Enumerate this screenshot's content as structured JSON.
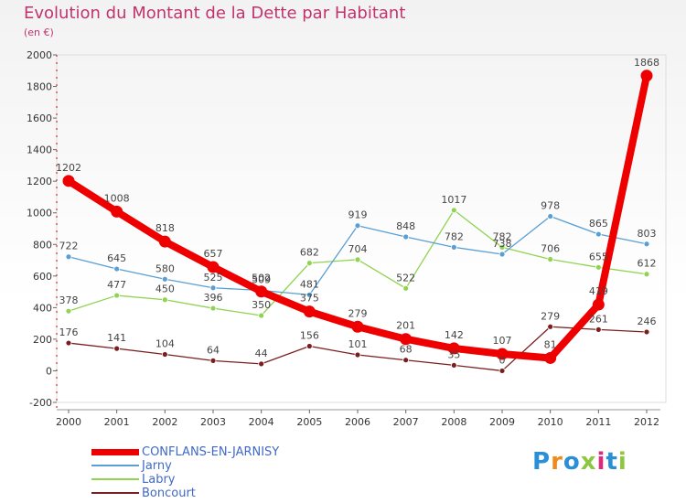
{
  "title": "Evolution du Montant de la Dette par Habitant",
  "subtitle": "(en €)",
  "logo_text": "Proxiti",
  "chart_data": {
    "type": "line",
    "title": "Evolution du Montant de la Dette par Habitant",
    "ylabel": "(en €)",
    "x": [
      "2000",
      "2001",
      "2002",
      "2003",
      "2004",
      "2005",
      "2006",
      "2007",
      "2008",
      "2009",
      "2010",
      "2011",
      "2012"
    ],
    "ylim": [
      -200,
      2000
    ],
    "yticks": [
      -200,
      0,
      200,
      400,
      600,
      800,
      1000,
      1200,
      1400,
      1600,
      1800,
      2000
    ],
    "grid": false,
    "legend": "bottom-left",
    "series": [
      {
        "name": "CONFLANS-EN-JARNISY",
        "color": "#ee0000",
        "values": [
          1202,
          1008,
          818,
          657,
          502,
          375,
          279,
          201,
          142,
          107,
          81,
          419,
          1868
        ]
      },
      {
        "name": "Jarny",
        "color": "#5a9fd4",
        "values": [
          722,
          645,
          580,
          525,
          509,
          481,
          919,
          848,
          782,
          738,
          978,
          865,
          803
        ]
      },
      {
        "name": "Labry",
        "color": "#90d350",
        "values": [
          378,
          477,
          450,
          396,
          350,
          682,
          704,
          522,
          1017,
          782,
          706,
          655,
          612
        ]
      },
      {
        "name": "Boncourt",
        "color": "#7a1f1f",
        "values": [
          176,
          141,
          104,
          64,
          44,
          156,
          101,
          68,
          35,
          0,
          279,
          261,
          246
        ]
      }
    ]
  }
}
